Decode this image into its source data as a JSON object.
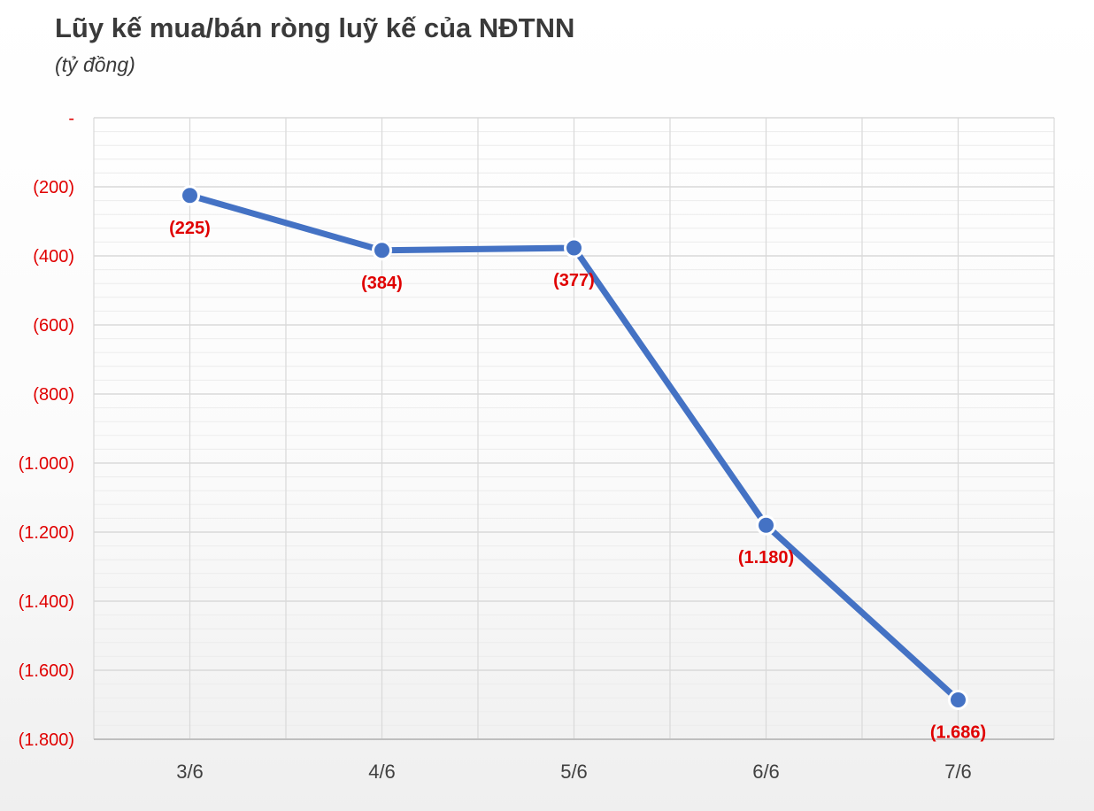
{
  "title": "Lũy kế mua/bán ròng luỹ kế của NĐTNN",
  "subtitle": "(tỷ đồng)",
  "colors": {
    "line": "#4472c4",
    "labels": "#e00000",
    "grid": "#d9d9d9",
    "axis_text": "#404040"
  },
  "chart_data": {
    "type": "line",
    "title": "Lũy kế mua/bán ròng luỹ kế của NĐTNN",
    "subtitle": "(tỷ đồng)",
    "categories": [
      "3/6",
      "4/6",
      "5/6",
      "6/6",
      "7/6"
    ],
    "series": [
      {
        "values": [
          -225,
          -384,
          -377,
          -1180,
          -1686
        ]
      }
    ],
    "data_labels": [
      "(225)",
      "(384)",
      "(377)",
      "(1.180)",
      "(1.686)"
    ],
    "ylim": [
      -1800,
      0
    ],
    "yticks": [
      0,
      -200,
      -400,
      -600,
      -800,
      -1000,
      -1200,
      -1400,
      -1600,
      -1800
    ],
    "ytick_labels": [
      "-",
      "(200)",
      "(400)",
      "(600)",
      "(800)",
      "(1.000)",
      "(1.200)",
      "(1.400)",
      "(1.600)",
      "(1.800)"
    ],
    "grid": true,
    "legend": "none"
  }
}
